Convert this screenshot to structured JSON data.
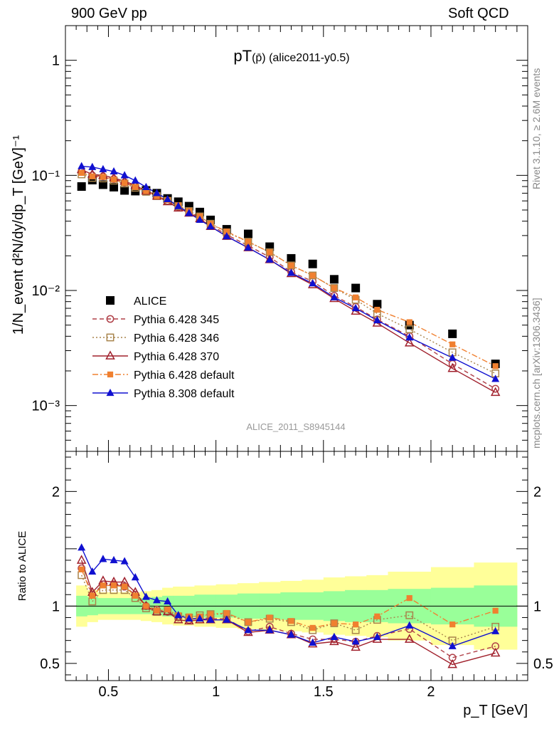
{
  "header": {
    "left": "900 GeV pp",
    "right": "Soft QCD"
  },
  "side_labels": {
    "rivet": "Rivet 3.1.10, ≥ 2.6M events",
    "mcplots": "mcplots.cern.ch [arXiv:1306.3436]"
  },
  "chart_data": [
    {
      "type": "scatter",
      "panel": "main",
      "title_main": "pT",
      "title_sub": "(p̄)",
      "title_rest": " (alice2011-y0.5)",
      "ylabel": "1/N_event d²N/dy/dp_T [GeV]⁻¹",
      "yscale": "log",
      "ylim": [
        0.0004,
        2.0
      ],
      "xlim": [
        0.3,
        2.45
      ],
      "yticks": [
        {
          "v": 0.001,
          "label": "10⁻³"
        },
        {
          "v": 0.01,
          "label": "10⁻²"
        },
        {
          "v": 0.1,
          "label": "10⁻¹"
        },
        {
          "v": 1,
          "label": "1"
        }
      ],
      "watermark": "ALICE_2011_S8945144",
      "x": [
        0.375,
        0.425,
        0.475,
        0.525,
        0.575,
        0.625,
        0.675,
        0.725,
        0.775,
        0.825,
        0.875,
        0.925,
        0.975,
        1.05,
        1.15,
        1.25,
        1.35,
        1.45,
        1.55,
        1.65,
        1.75,
        1.9,
        2.1,
        2.3
      ],
      "series": [
        {
          "name": "ALICE",
          "color": "#000000",
          "marker": "square-filled",
          "line": "none",
          "values": [
            0.08,
            0.091,
            0.083,
            0.079,
            0.074,
            0.073,
            0.074,
            0.07,
            0.063,
            0.059,
            0.054,
            0.048,
            0.041,
            0.034,
            0.031,
            0.024,
            0.019,
            0.017,
            0.0125,
            0.0105,
            0.0076,
            0.005,
            0.0042,
            0.0023
          ]
        },
        {
          "name": "Pythia 6.428 345",
          "color": "#b04048",
          "marker": "circle-open",
          "line": "dash",
          "values": [
            0.108,
            0.1,
            0.098,
            0.093,
            0.087,
            0.081,
            0.074,
            0.067,
            0.06,
            0.053,
            0.048,
            0.043,
            0.037,
            0.0305,
            0.0245,
            0.0195,
            0.0145,
            0.012,
            0.009,
            0.0072,
            0.0056,
            0.004,
            0.0023,
            0.0014
          ]
        },
        {
          "name": "Pythia 6.428 346",
          "color": "#a8844c",
          "marker": "square-open",
          "line": "dot",
          "values": [
            0.102,
            0.095,
            0.094,
            0.09,
            0.085,
            0.078,
            0.072,
            0.066,
            0.06,
            0.054,
            0.049,
            0.044,
            0.038,
            0.032,
            0.0265,
            0.0215,
            0.0165,
            0.0135,
            0.0105,
            0.0083,
            0.0063,
            0.0046,
            0.0029,
            0.0019
          ]
        },
        {
          "name": "Pythia 6.428 370",
          "color": "#a0202c",
          "marker": "triangle-open",
          "line": "solid",
          "values": [
            0.112,
            0.102,
            0.1,
            0.095,
            0.089,
            0.082,
            0.073,
            0.066,
            0.059,
            0.052,
            0.047,
            0.042,
            0.036,
            0.0295,
            0.0235,
            0.0185,
            0.014,
            0.0112,
            0.0085,
            0.0066,
            0.0052,
            0.0035,
            0.0021,
            0.0013
          ]
        },
        {
          "name": "Pythia 6.428 default",
          "color": "#f08030",
          "marker": "square-small",
          "line": "dashdot",
          "values": [
            0.105,
            0.098,
            0.097,
            0.092,
            0.086,
            0.079,
            0.073,
            0.066,
            0.061,
            0.055,
            0.049,
            0.044,
            0.038,
            0.0325,
            0.0265,
            0.0215,
            0.0165,
            0.0135,
            0.0105,
            0.0087,
            0.0068,
            0.0053,
            0.0034,
            0.0022
          ]
        },
        {
          "name": "Pythia 8.308 default",
          "color": "#1010d0",
          "marker": "triangle-filled",
          "line": "solid",
          "values": [
            0.12,
            0.118,
            0.113,
            0.108,
            0.1,
            0.09,
            0.079,
            0.07,
            0.062,
            0.054,
            0.047,
            0.041,
            0.036,
            0.0295,
            0.0235,
            0.0185,
            0.0142,
            0.0115,
            0.0087,
            0.007,
            0.0055,
            0.0039,
            0.0026,
            0.0017
          ]
        }
      ]
    },
    {
      "type": "scatter",
      "panel": "ratio",
      "ylabel": "Ratio to ALICE",
      "xlabel": "p_T [GeV]",
      "ylim": [
        0.35,
        2.35
      ],
      "xlim": [
        0.3,
        2.45
      ],
      "yticks": [
        {
          "v": 0.5,
          "label": "0.5"
        },
        {
          "v": 1,
          "label": "1"
        },
        {
          "v": 2,
          "label": "2"
        }
      ],
      "xticks": [
        {
          "v": 0.5,
          "label": "0.5"
        },
        {
          "v": 1,
          "label": "1"
        },
        {
          "v": 1.5,
          "label": "1.5"
        },
        {
          "v": 2,
          "label": "2"
        }
      ],
      "bands": {
        "edges": [
          0.35,
          0.4,
          0.45,
          0.5,
          0.55,
          0.6,
          0.65,
          0.7,
          0.75,
          0.8,
          0.85,
          0.9,
          0.95,
          1.0,
          1.1,
          1.2,
          1.3,
          1.4,
          1.5,
          1.6,
          1.7,
          1.8,
          2.0,
          2.2,
          2.4
        ],
        "yellow": [
          0.18,
          0.14,
          0.12,
          0.12,
          0.12,
          0.12,
          0.13,
          0.14,
          0.16,
          0.17,
          0.17,
          0.18,
          0.18,
          0.19,
          0.2,
          0.21,
          0.22,
          0.23,
          0.25,
          0.26,
          0.27,
          0.3,
          0.34,
          0.38
        ],
        "green": [
          0.09,
          0.08,
          0.07,
          0.07,
          0.07,
          0.07,
          0.07,
          0.08,
          0.09,
          0.09,
          0.09,
          0.1,
          0.1,
          0.1,
          0.11,
          0.11,
          0.12,
          0.12,
          0.13,
          0.14,
          0.14,
          0.15,
          0.16,
          0.18
        ],
        "yellow_color": "#ffff99",
        "green_color": "#99ff99"
      },
      "series": [
        {
          "name": "Pythia 6.428 345",
          "values": [
            1.33,
            1.1,
            1.19,
            1.19,
            1.17,
            1.1,
            1.0,
            0.97,
            0.95,
            0.9,
            0.88,
            0.9,
            0.89,
            0.89,
            0.78,
            0.82,
            0.76,
            0.71,
            0.71,
            0.69,
            0.74,
            0.8,
            0.55,
            0.65
          ]
        },
        {
          "name": "Pythia 6.428 346",
          "values": [
            1.27,
            1.04,
            1.14,
            1.14,
            1.14,
            1.07,
            0.98,
            0.95,
            0.96,
            0.91,
            0.9,
            0.92,
            0.93,
            0.93,
            0.86,
            0.89,
            0.86,
            0.79,
            0.85,
            0.79,
            0.88,
            0.92,
            0.7,
            0.82
          ]
        },
        {
          "name": "Pythia 6.428 370",
          "values": [
            1.4,
            1.12,
            1.22,
            1.21,
            1.21,
            1.12,
            1.0,
            0.95,
            0.95,
            0.88,
            0.87,
            0.88,
            0.88,
            0.88,
            0.77,
            0.79,
            0.75,
            0.67,
            0.69,
            0.64,
            0.71,
            0.71,
            0.49,
            0.59
          ]
        },
        {
          "name": "Pythia 6.428 default",
          "values": [
            1.32,
            1.09,
            1.18,
            1.18,
            1.17,
            1.09,
            1.0,
            0.96,
            0.97,
            0.92,
            0.91,
            0.91,
            0.93,
            0.94,
            0.86,
            0.9,
            0.87,
            0.81,
            0.85,
            0.84,
            0.91,
            1.07,
            0.84,
            0.96
          ]
        },
        {
          "name": "Pythia 8.308 default",
          "values": [
            1.51,
            1.3,
            1.41,
            1.4,
            1.39,
            1.25,
            1.08,
            1.05,
            1.04,
            0.92,
            0.89,
            0.89,
            0.88,
            0.88,
            0.79,
            0.79,
            0.75,
            0.68,
            0.73,
            0.69,
            0.73,
            0.83,
            0.65,
            0.78
          ]
        }
      ]
    }
  ]
}
